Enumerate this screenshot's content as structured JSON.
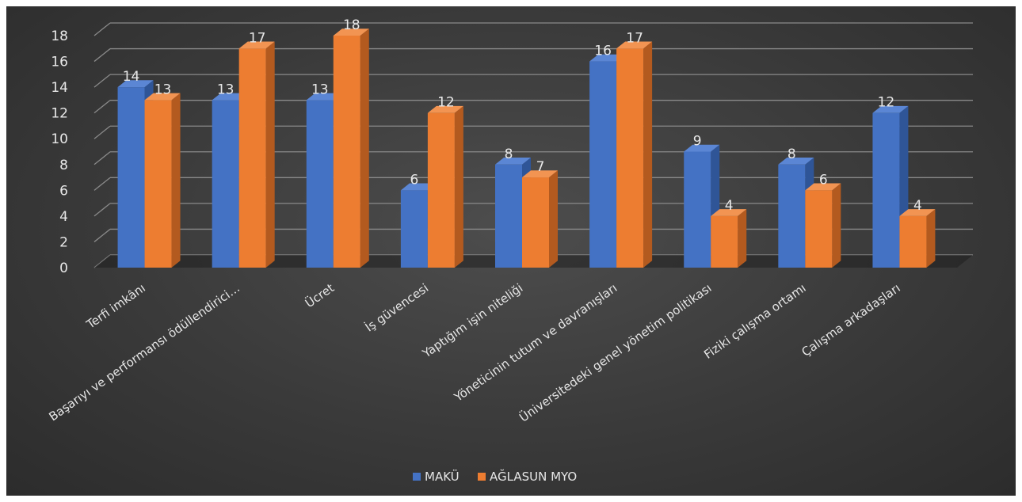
{
  "colors": {
    "background": "#3a3a3a",
    "grid": "#8a8a8a",
    "text": "#e6e6e6",
    "series_front": [
      "#4472c4",
      "#ed7d31"
    ],
    "series_side": [
      "#2f5597",
      "#b35a1f"
    ],
    "series_top": [
      "#5b86d4",
      "#f29452"
    ]
  },
  "chart_data": {
    "type": "bar",
    "title": "",
    "xlabel": "",
    "ylabel": "",
    "ylim": [
      0,
      18
    ],
    "yticks": [
      0,
      2,
      4,
      6,
      8,
      10,
      12,
      14,
      16,
      18
    ],
    "grid": true,
    "legend_position": "bottom",
    "style": "3d-clustered-column",
    "categories": [
      "Terfi imkânı",
      "Başarıyı ve performansı ödüllendirici…",
      "Ücret",
      "İş güvencesi",
      "Yaptığım işin niteliği",
      "Yöneticinin tutum ve davranışları",
      "Üniversitedeki genel yönetim politikası",
      "Fiziki çalışma ortamı",
      "Çalışma arkadaşları"
    ],
    "series": [
      {
        "name": "MAKÜ",
        "values": [
          14,
          13,
          13,
          6,
          8,
          16,
          9,
          8,
          12
        ]
      },
      {
        "name": "AĞLASUN MYO",
        "values": [
          13,
          17,
          18,
          12,
          7,
          17,
          4,
          6,
          4
        ]
      }
    ]
  }
}
